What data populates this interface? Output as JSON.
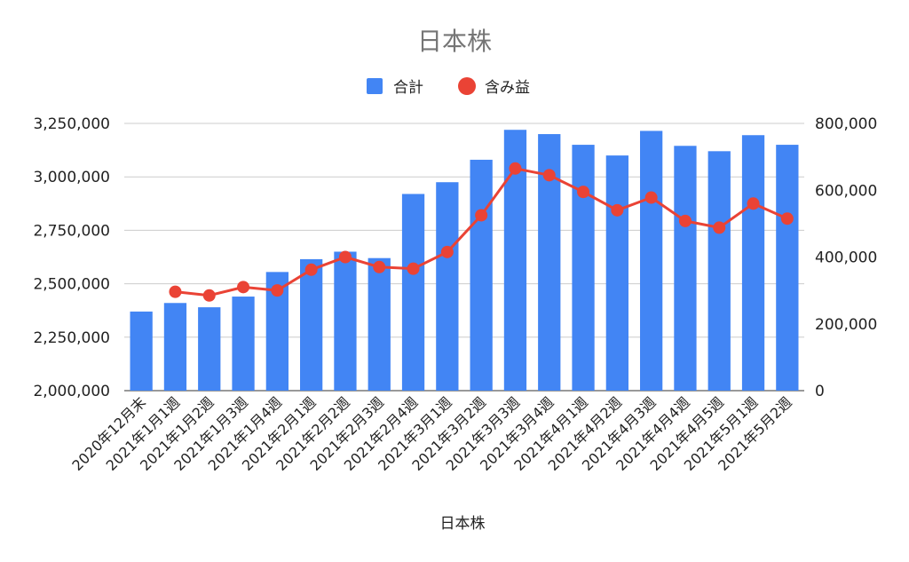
{
  "chart_data": {
    "type": "bar",
    "title": "日本株",
    "xlabel": "日本株",
    "categories": [
      "2020年12月末",
      "2021年1月1週",
      "2021年1月2週",
      "2021年1月3週",
      "2021年1月4週",
      "2021年2月1週",
      "2021年2月2週",
      "2021年2月3週",
      "2021年2月4週",
      "2021年3月1週",
      "2021年3月2週",
      "2021年3月3週",
      "2021年3月4週",
      "2021年4月1週",
      "2021年4月2週",
      "2021年4月3週",
      "2021年4月4週",
      "2021年4月5週",
      "2021年5月1週",
      "2021年5月2週"
    ],
    "series": [
      {
        "name": "合計",
        "type": "bar",
        "axis": "left",
        "color": "#4285f4",
        "values": [
          2370000,
          2410000,
          2390000,
          2440000,
          2555000,
          2615000,
          2650000,
          2620000,
          2920000,
          2975000,
          3080000,
          3220000,
          3200000,
          3150000,
          3100000,
          3215000,
          3145000,
          3120000,
          3195000,
          3150000
        ]
      },
      {
        "name": "含み益",
        "type": "line",
        "axis": "right",
        "color": "#ea4335",
        "values": [
          null,
          296000,
          285000,
          310000,
          300000,
          362000,
          400000,
          370000,
          365000,
          415000,
          525000,
          665000,
          645000,
          595000,
          540000,
          578000,
          508000,
          488000,
          560000,
          515000
        ]
      }
    ],
    "y_left": {
      "min": 2000000,
      "max": 3250000,
      "ticks": [
        2000000,
        2250000,
        2500000,
        2750000,
        3000000,
        3250000
      ],
      "tick_labels": [
        "2,000,000",
        "2,250,000",
        "2,500,000",
        "2,750,000",
        "3,000,000",
        "3,250,000"
      ]
    },
    "y_right": {
      "min": 0,
      "max": 800000,
      "ticks": [
        0,
        200000,
        400000,
        600000,
        800000
      ],
      "tick_labels": [
        "0",
        "200,000",
        "400,000",
        "600,000",
        "800,000"
      ]
    },
    "grid": true,
    "legend_position": "top"
  }
}
